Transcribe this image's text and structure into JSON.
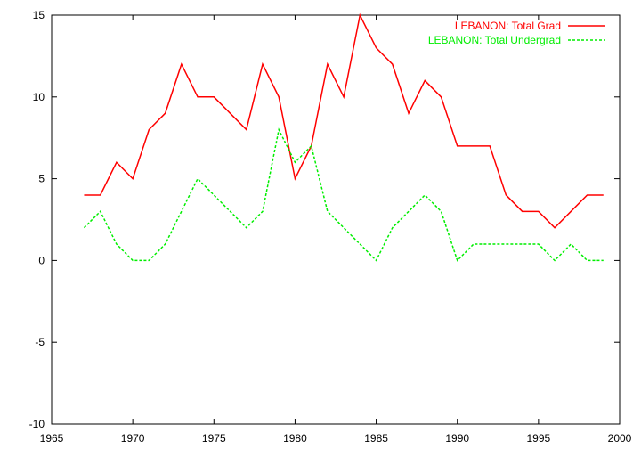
{
  "chart_data": {
    "type": "line",
    "title": "",
    "xlabel": "",
    "ylabel": "",
    "xlim": [
      1965,
      2000
    ],
    "ylim": [
      -10,
      15
    ],
    "xticks": [
      1965,
      1970,
      1975,
      1980,
      1985,
      1990,
      1995,
      2000
    ],
    "yticks": [
      -10,
      -5,
      0,
      5,
      10,
      15
    ],
    "grid": false,
    "legend_position": "top-right",
    "x": [
      1967,
      1968,
      1969,
      1970,
      1971,
      1972,
      1973,
      1974,
      1975,
      1976,
      1977,
      1978,
      1979,
      1980,
      1981,
      1982,
      1983,
      1984,
      1985,
      1986,
      1987,
      1988,
      1989,
      1990,
      1991,
      1992,
      1993,
      1994,
      1995,
      1996,
      1997,
      1998,
      1999
    ],
    "series": [
      {
        "name": "LEBANON: Total Grad",
        "color": "#ff0000",
        "dash": "solid",
        "values": [
          4,
          4,
          6,
          5,
          8,
          9,
          12,
          10,
          10,
          9,
          8,
          12,
          10,
          5,
          7,
          12,
          10,
          15,
          13,
          12,
          9,
          11,
          10,
          7,
          7,
          7,
          4,
          3,
          3,
          2,
          3,
          4,
          4
        ]
      },
      {
        "name": "LEBANON: Total Undergrad",
        "color": "#00ee00",
        "dash": "dashed",
        "values": [
          2,
          3,
          1,
          0,
          0,
          1,
          3,
          5,
          4,
          3,
          2,
          3,
          8,
          6,
          7,
          3,
          2,
          1,
          0,
          2,
          3,
          4,
          3,
          0,
          1,
          1,
          1,
          1,
          1,
          0,
          1,
          0,
          0
        ]
      }
    ]
  }
}
